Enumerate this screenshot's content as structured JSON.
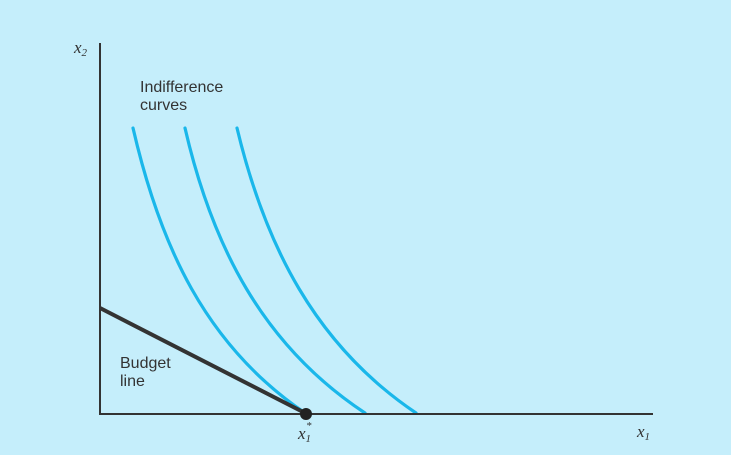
{
  "labels": {
    "y_axis": "x",
    "y_axis_sub": "2",
    "x_axis": "x",
    "x_axis_sub": "1",
    "optimum": "x",
    "optimum_sub": "1",
    "optimum_sup": "*",
    "curves_line1": "Indifference",
    "curves_line2": "curves",
    "budget_line1": "Budget",
    "budget_line2": "line"
  },
  "colors": {
    "background": "#c5eefb",
    "axis": "#333333",
    "budget_line": "#333333",
    "indifference_curve": "#1ab7ea",
    "optimum_point": "#222222"
  }
}
